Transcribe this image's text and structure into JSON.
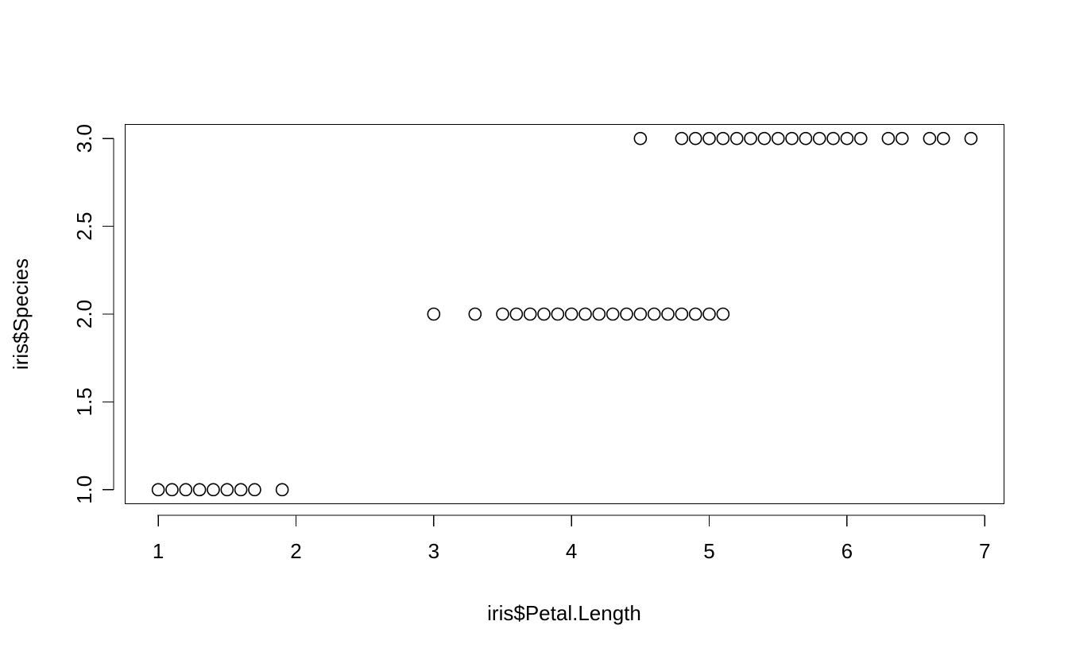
{
  "chart_data": {
    "type": "scatter",
    "title": "",
    "xlabel": "iris$Petal.Length",
    "ylabel": "iris$Species",
    "xlim": [
      0.76,
      7.14
    ],
    "ylim": [
      0.92,
      3.08
    ],
    "x_ticks": [
      1,
      2,
      3,
      4,
      5,
      6,
      7
    ],
    "x_tick_labels": [
      "1",
      "2",
      "3",
      "4",
      "5",
      "6",
      "7"
    ],
    "y_ticks": [
      1.0,
      1.5,
      2.0,
      2.5,
      3.0
    ],
    "y_tick_labels": [
      "1.0",
      "1.5",
      "2.0",
      "2.5",
      "3.0"
    ],
    "grid": false,
    "series": [
      {
        "marker": "open-circle",
        "color": "#000000",
        "points": [
          [
            1.0,
            1
          ],
          [
            1.1,
            1
          ],
          [
            1.2,
            1
          ],
          [
            1.3,
            1
          ],
          [
            1.4,
            1
          ],
          [
            1.5,
            1
          ],
          [
            1.6,
            1
          ],
          [
            1.7,
            1
          ],
          [
            1.9,
            1
          ],
          [
            3.0,
            2
          ],
          [
            3.3,
            2
          ],
          [
            3.5,
            2
          ],
          [
            3.6,
            2
          ],
          [
            3.7,
            2
          ],
          [
            3.8,
            2
          ],
          [
            3.9,
            2
          ],
          [
            4.0,
            2
          ],
          [
            4.1,
            2
          ],
          [
            4.2,
            2
          ],
          [
            4.3,
            2
          ],
          [
            4.4,
            2
          ],
          [
            4.5,
            2
          ],
          [
            4.6,
            2
          ],
          [
            4.7,
            2
          ],
          [
            4.8,
            2
          ],
          [
            4.9,
            2
          ],
          [
            5.0,
            2
          ],
          [
            5.1,
            2
          ],
          [
            4.5,
            3
          ],
          [
            4.8,
            3
          ],
          [
            4.9,
            3
          ],
          [
            5.0,
            3
          ],
          [
            5.1,
            3
          ],
          [
            5.2,
            3
          ],
          [
            5.3,
            3
          ],
          [
            5.4,
            3
          ],
          [
            5.5,
            3
          ],
          [
            5.6,
            3
          ],
          [
            5.7,
            3
          ],
          [
            5.8,
            3
          ],
          [
            5.9,
            3
          ],
          [
            6.0,
            3
          ],
          [
            6.1,
            3
          ],
          [
            6.3,
            3
          ],
          [
            6.4,
            3
          ],
          [
            6.6,
            3
          ],
          [
            6.7,
            3
          ],
          [
            6.9,
            3
          ]
        ]
      }
    ]
  }
}
